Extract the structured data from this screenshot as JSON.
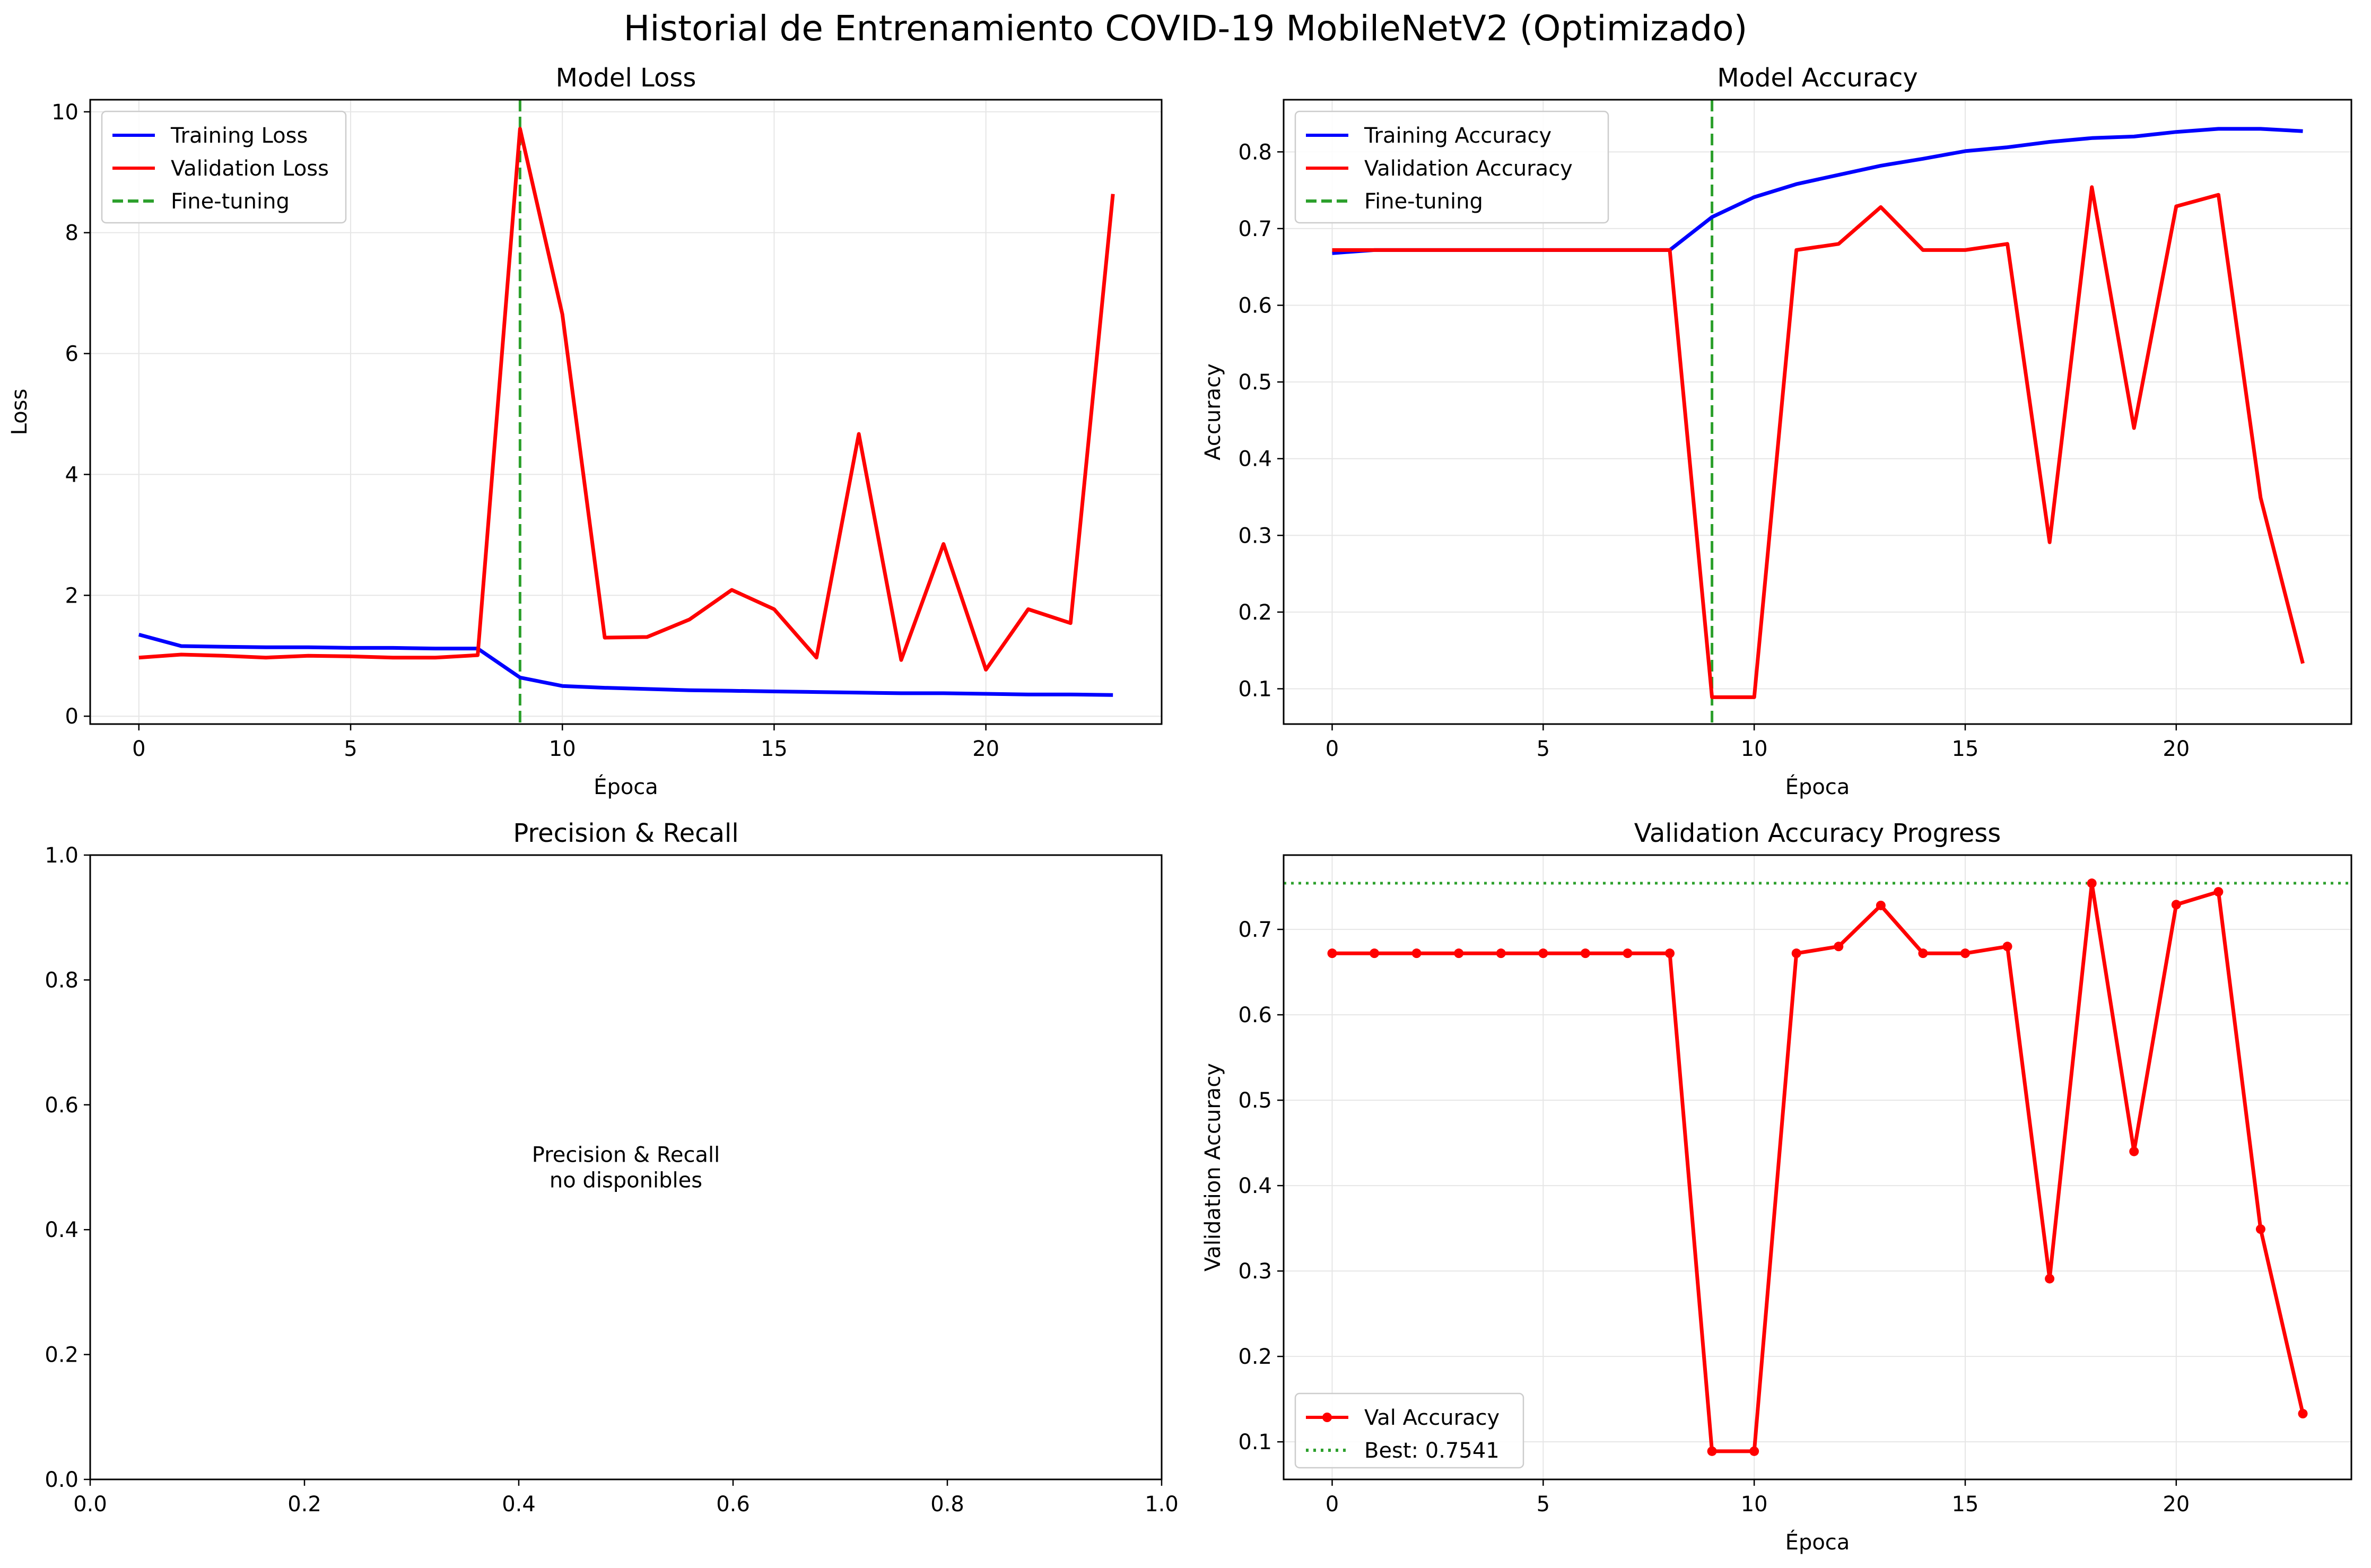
{
  "figure": {
    "suptitle": "Historial de Entrenamiento COVID-19 MobileNetV2 (Optimizado)"
  },
  "colors": {
    "training": "#0000ff",
    "validation": "#ff0000",
    "finetune": "#2ca02c",
    "grid": "#e6e6e6"
  },
  "chart_data": [
    {
      "type": "line",
      "title": "Model Loss",
      "xlabel": "Época",
      "ylabel": "Loss",
      "xlim": [
        -1.15,
        24.15
      ],
      "ylim": [
        -0.13,
        10.2
      ],
      "xticks": [
        0,
        5,
        10,
        15,
        20
      ],
      "yticks": [
        0,
        2,
        4,
        6,
        8,
        10
      ],
      "grid": true,
      "legend": "top-left",
      "x": [
        0,
        1,
        2,
        3,
        4,
        5,
        6,
        7,
        8,
        9,
        10,
        11,
        12,
        13,
        14,
        15,
        16,
        17,
        18,
        19,
        20,
        21,
        22,
        23
      ],
      "series": [
        {
          "name": "Training Loss",
          "color": "#0000ff",
          "values": [
            1.35,
            1.16,
            1.15,
            1.14,
            1.14,
            1.13,
            1.13,
            1.12,
            1.12,
            0.64,
            0.5,
            0.47,
            0.45,
            0.43,
            0.42,
            0.41,
            0.4,
            0.39,
            0.38,
            0.38,
            0.37,
            0.36,
            0.36,
            0.35
          ]
        },
        {
          "name": "Validation Loss",
          "color": "#ff0000",
          "values": [
            0.97,
            1.02,
            1.0,
            0.97,
            1.0,
            0.99,
            0.97,
            0.97,
            1.01,
            9.72,
            6.65,
            1.3,
            1.31,
            1.6,
            2.09,
            1.77,
            0.97,
            4.67,
            0.93,
            2.85,
            0.77,
            1.77,
            1.54,
            8.64
          ]
        }
      ],
      "vline": {
        "name": "Fine-tuning",
        "x": 9,
        "style": "dashed",
        "color": "#2ca02c"
      }
    },
    {
      "type": "line",
      "title": "Model Accuracy",
      "xlabel": "Época",
      "ylabel": "Accuracy",
      "xlim": [
        -1.15,
        24.15
      ],
      "ylim": [
        0.054,
        0.868
      ],
      "xticks": [
        0,
        5,
        10,
        15,
        20
      ],
      "yticks": [
        0.1,
        0.2,
        0.3,
        0.4,
        0.5,
        0.6,
        0.7,
        0.8
      ],
      "grid": true,
      "legend": "top-left",
      "x": [
        0,
        1,
        2,
        3,
        4,
        5,
        6,
        7,
        8,
        9,
        10,
        11,
        12,
        13,
        14,
        15,
        16,
        17,
        18,
        19,
        20,
        21,
        22,
        23
      ],
      "series": [
        {
          "name": "Training Accuracy",
          "color": "#0000ff",
          "values": [
            0.668,
            0.672,
            0.672,
            0.672,
            0.672,
            0.672,
            0.672,
            0.672,
            0.672,
            0.715,
            0.741,
            0.758,
            0.77,
            0.782,
            0.791,
            0.801,
            0.806,
            0.813,
            0.818,
            0.82,
            0.826,
            0.83,
            0.83,
            0.827
          ]
        },
        {
          "name": "Validation Accuracy",
          "color": "#ff0000",
          "values": [
            0.672,
            0.672,
            0.672,
            0.672,
            0.672,
            0.672,
            0.672,
            0.672,
            0.672,
            0.089,
            0.089,
            0.672,
            0.68,
            0.728,
            0.672,
            0.672,
            0.68,
            0.291,
            0.754,
            0.44,
            0.729,
            0.744,
            0.349,
            0.133
          ]
        }
      ],
      "vline": {
        "name": "Fine-tuning",
        "x": 9,
        "style": "dashed",
        "color": "#2ca02c"
      }
    },
    {
      "type": "line",
      "title": "Precision & Recall",
      "xlabel": "",
      "ylabel": "",
      "xlim": [
        0,
        1
      ],
      "ylim": [
        0,
        1
      ],
      "xticks": [
        0.0,
        0.2,
        0.4,
        0.6,
        0.8,
        1.0
      ],
      "yticks": [
        0.0,
        0.2,
        0.4,
        0.6,
        0.8,
        1.0
      ],
      "grid": false,
      "message_lines": [
        "Precision & Recall",
        "no disponibles"
      ],
      "series": []
    },
    {
      "type": "line",
      "title": "Validation Accuracy Progress",
      "xlabel": "Época",
      "ylabel": "Validation Accuracy",
      "xlim": [
        -1.15,
        24.15
      ],
      "ylim": [
        0.056,
        0.787
      ],
      "xticks": [
        0,
        5,
        10,
        15,
        20
      ],
      "yticks": [
        0.1,
        0.2,
        0.3,
        0.4,
        0.5,
        0.6,
        0.7
      ],
      "grid": true,
      "legend": "bottom-left",
      "x": [
        0,
        1,
        2,
        3,
        4,
        5,
        6,
        7,
        8,
        9,
        10,
        11,
        12,
        13,
        14,
        15,
        16,
        17,
        18,
        19,
        20,
        21,
        22,
        23
      ],
      "series": [
        {
          "name": "Val Accuracy",
          "color": "#ff0000",
          "markers": true,
          "values": [
            0.672,
            0.672,
            0.672,
            0.672,
            0.672,
            0.672,
            0.672,
            0.672,
            0.672,
            0.089,
            0.089,
            0.672,
            0.68,
            0.728,
            0.672,
            0.672,
            0.68,
            0.291,
            0.754,
            0.44,
            0.729,
            0.744,
            0.349,
            0.133
          ]
        }
      ],
      "hline": {
        "name": "Best: 0.7541",
        "y": 0.7541,
        "style": "dotted",
        "color": "#2ca02c"
      }
    }
  ]
}
